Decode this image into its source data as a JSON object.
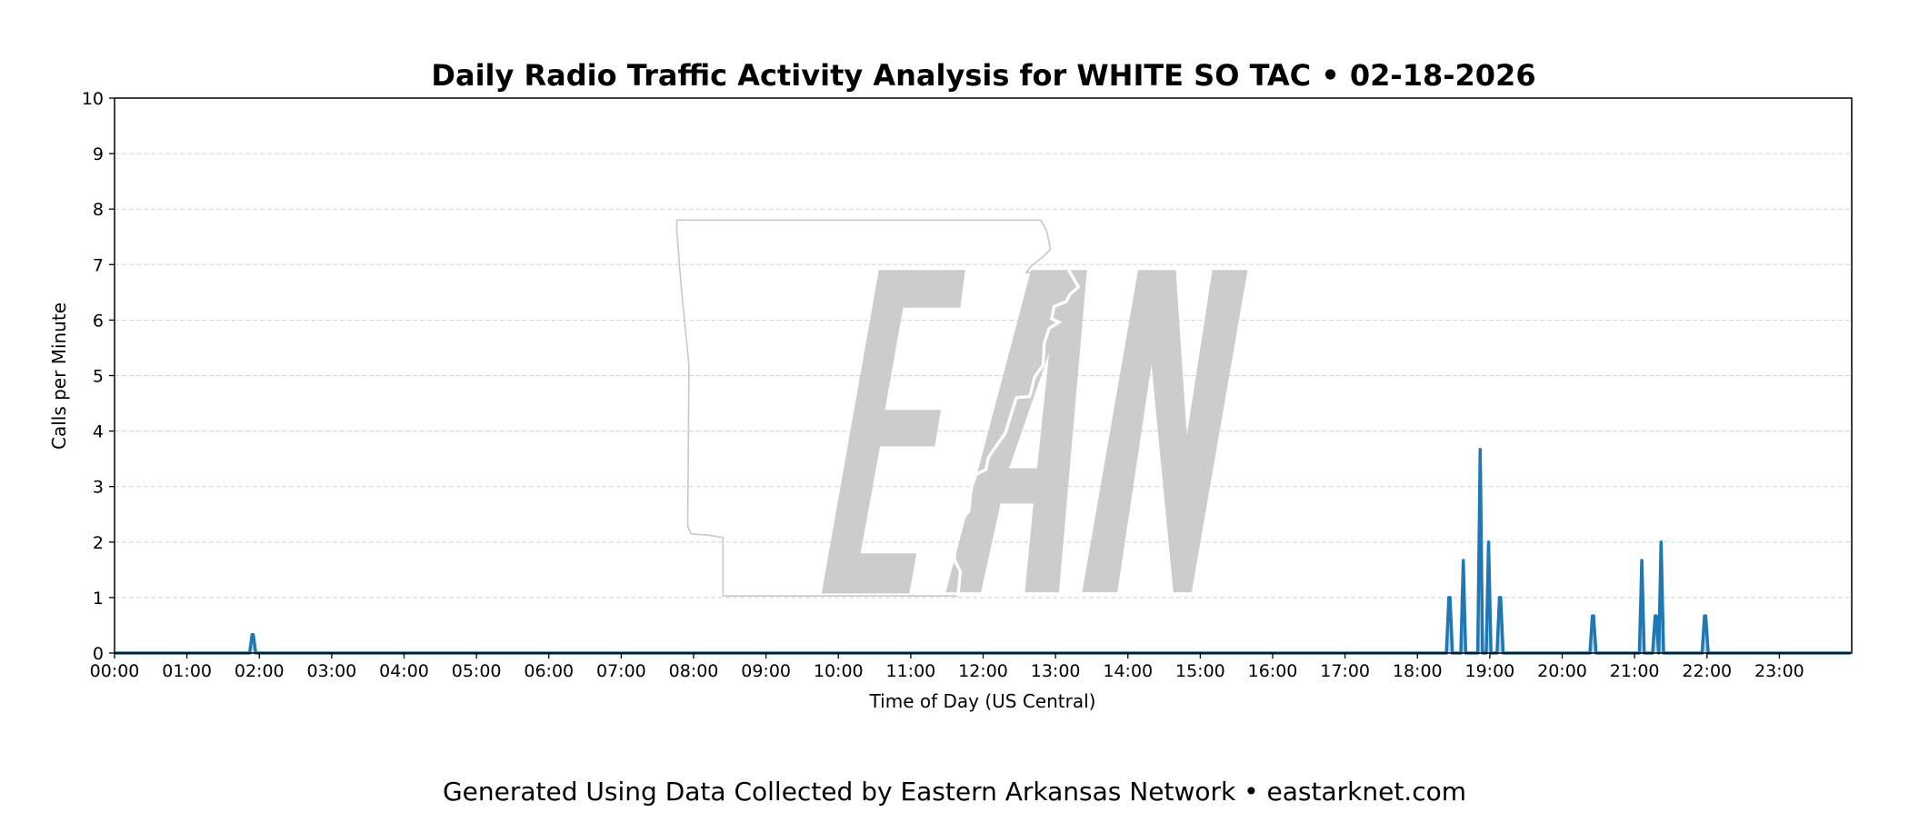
{
  "chart_data": {
    "type": "area",
    "title": "Daily Radio Traffic Activity Analysis for WHITE SO TAC • 02-18-2026",
    "xlabel": "Time of Day (US Central)",
    "ylabel": "Calls per Minute",
    "xlim": [
      "00:00",
      "24:00"
    ],
    "ylim": [
      0,
      10
    ],
    "yticks": [
      "0",
      "1",
      "2",
      "3",
      "4",
      "5",
      "6",
      "7",
      "8",
      "9",
      "10"
    ],
    "xticks": [
      "00:00",
      "01:00",
      "02:00",
      "03:00",
      "04:00",
      "05:00",
      "06:00",
      "07:00",
      "08:00",
      "09:00",
      "10:00",
      "11:00",
      "12:00",
      "13:00",
      "14:00",
      "15:00",
      "16:00",
      "17:00",
      "18:00",
      "19:00",
      "20:00",
      "21:00",
      "22:00",
      "23:00"
    ],
    "grid": "horizontal dashed",
    "series": [
      {
        "color": "#1f77b4",
        "points": [
          [
            "01:54",
            0.33
          ],
          [
            "01:55",
            0.33
          ],
          [
            "18:26",
            1
          ],
          [
            "18:27",
            1
          ],
          [
            "18:38",
            1.67
          ],
          [
            "18:52",
            3.67
          ],
          [
            "18:59",
            2
          ],
          [
            "19:08",
            1
          ],
          [
            "19:09",
            1
          ],
          [
            "20:25",
            0.67
          ],
          [
            "20:26",
            0.67
          ],
          [
            "21:06",
            1.67
          ],
          [
            "21:17",
            0.67
          ],
          [
            "21:18",
            0.67
          ],
          [
            "21:19",
            0.33
          ],
          [
            "21:22",
            2
          ],
          [
            "21:58",
            0.67
          ],
          [
            "21:59",
            0.67
          ]
        ]
      }
    ]
  },
  "watermark": {
    "logo_text": "EAN",
    "color": "#cccccc"
  },
  "footer": "Generated Using Data Collected by Eastern Arkansas Network • eastarknet.com"
}
